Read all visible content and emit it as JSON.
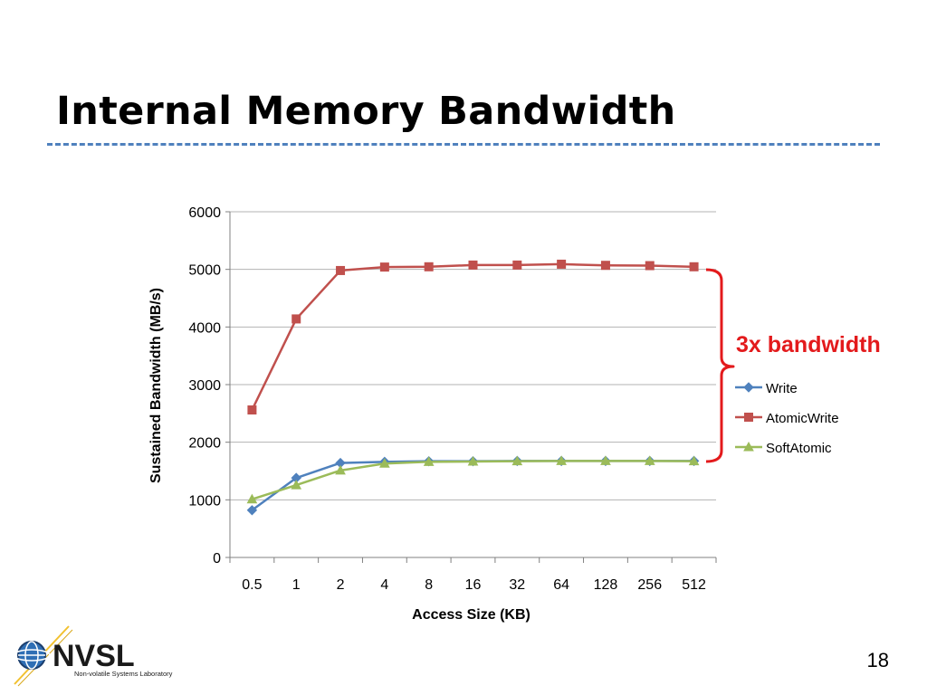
{
  "slide": {
    "title": "Internal Memory Bandwidth",
    "page_number": "18",
    "logo_text": "NVSL",
    "logo_subtext": "Non-volatile Systems Laboratory"
  },
  "annotation": {
    "text": "3x bandwidth",
    "color": "#e31a1c"
  },
  "colors": {
    "title_rule": "#4f81bd",
    "gridline": "#b3b3b3"
  },
  "chart_data": {
    "type": "line",
    "categories": [
      "0.5",
      "1",
      "2",
      "4",
      "8",
      "16",
      "32",
      "64",
      "128",
      "256",
      "512"
    ],
    "xlabel": "Access Size (KB)",
    "ylabel": "Sustained Bandwidth (MB/s)",
    "ylim": [
      0,
      6000
    ],
    "yticks": [
      0,
      1000,
      2000,
      3000,
      4000,
      5000,
      6000
    ],
    "grid": true,
    "legend_position": "right",
    "series": [
      {
        "name": "Write",
        "color": "#4f81bd",
        "marker": "diamond",
        "values": [
          820,
          1380,
          1640,
          1660,
          1670,
          1670,
          1675,
          1675,
          1675,
          1675,
          1675
        ]
      },
      {
        "name": "AtomicWrite",
        "color": "#c0504d",
        "marker": "square",
        "values": [
          2560,
          4140,
          4980,
          5040,
          5045,
          5075,
          5075,
          5090,
          5070,
          5065,
          5045
        ]
      },
      {
        "name": "SoftAtomic",
        "color": "#9bbb59",
        "marker": "triangle",
        "values": [
          1010,
          1255,
          1510,
          1630,
          1660,
          1665,
          1670,
          1675,
          1675,
          1675,
          1670
        ]
      }
    ]
  }
}
